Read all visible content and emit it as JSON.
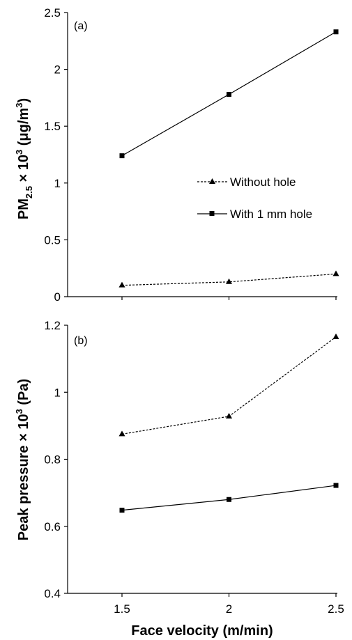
{
  "chart_data": [
    {
      "type": "line",
      "panel_label": "(a)",
      "ylabel": "PM2.5 × 10³ (μg/m³)",
      "ylabel_parts": {
        "base": "PM",
        "sub": "2.5",
        "mid": " × 10",
        "sup1": "3",
        "unit_open": " (μg/m",
        "sup2": "3",
        "unit_close": ")"
      },
      "xlabel": "",
      "x": [
        1.5,
        2,
        2.5
      ],
      "ylim": [
        0,
        2.5
      ],
      "yticks": [
        "0",
        "0.5",
        "1",
        "1.5",
        "2",
        "2.5"
      ],
      "xticks": [],
      "series": [
        {
          "name": "Without hole",
          "marker": "triangle",
          "dash": "dashed",
          "values": [
            0.1,
            0.13,
            0.2
          ]
        },
        {
          "name": "With 1 mm hole",
          "marker": "square",
          "dash": "solid",
          "values": [
            1.24,
            1.78,
            2.33
          ]
        }
      ],
      "legend": {
        "placement": "center-right"
      },
      "grid": false
    },
    {
      "type": "line",
      "panel_label": "(b)",
      "ylabel": "Peak pressure × 10³   (Pa)",
      "ylabel_parts": {
        "base": "Peak pressure × 10",
        "sup1": "3",
        "tail": "   (Pa)"
      },
      "xlabel": "Face velocity (m/min)",
      "x": [
        1.5,
        2,
        2.5
      ],
      "ylim": [
        0.4,
        1.2
      ],
      "yticks": [
        "0.4",
        "0.6",
        "0.8",
        "1",
        "1.2"
      ],
      "xticks": [
        "1.5",
        "2",
        "2.5"
      ],
      "series": [
        {
          "name": "Without hole",
          "marker": "triangle",
          "dash": "dashed",
          "values": [
            0.875,
            0.928,
            1.165
          ]
        },
        {
          "name": "With 1 mm hole",
          "marker": "square",
          "dash": "solid",
          "values": [
            0.648,
            0.68,
            0.722
          ]
        }
      ],
      "grid": false
    }
  ]
}
